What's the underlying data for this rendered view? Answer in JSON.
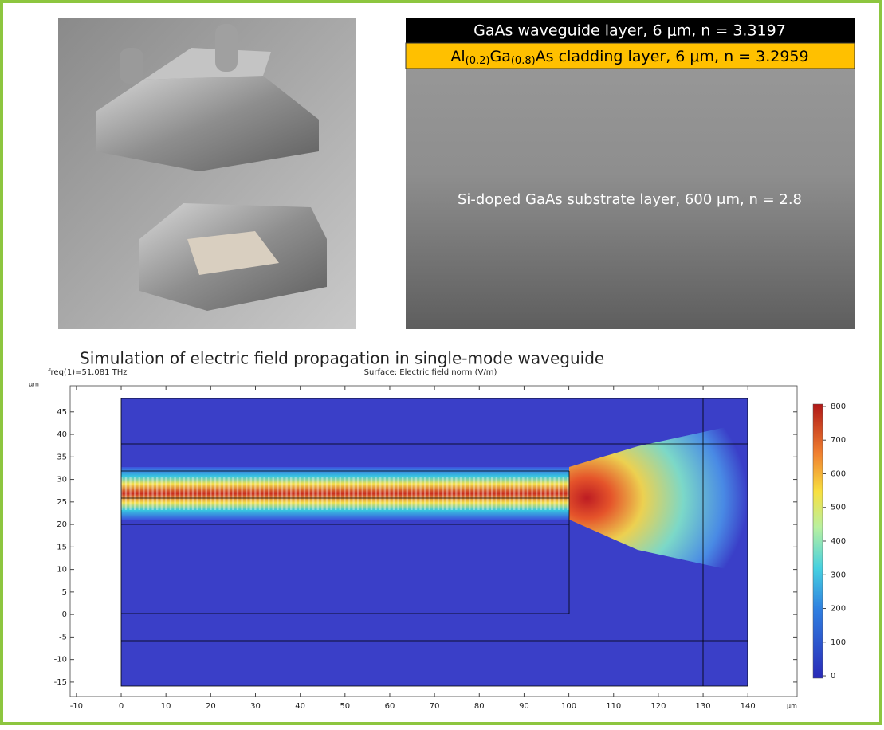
{
  "layers": {
    "waveguide": "GaAs waveguide layer, 6 μm, n = 3.3197",
    "cladding": [
      "Al",
      "(0.2)",
      "Ga",
      "(0.8)",
      "As cladding layer, 6 μm, n = 3.2959"
    ],
    "substrate": "Si-doped GaAs substrate layer, 600 μm, n = 2.8"
  },
  "caption": "Simulation of electric field propagation in single-mode waveguide",
  "chart_data": {
    "type": "heatmap",
    "title": "Surface: Electric field norm (V/m)",
    "subtitle": "freq(1)=51.081 THz",
    "x_unit": "μm",
    "y_unit": "μm",
    "xlim": [
      -11.4,
      151
    ],
    "ylim": [
      -18.2,
      50.8
    ],
    "xticks": [
      -10,
      0,
      10,
      20,
      30,
      40,
      50,
      60,
      70,
      80,
      90,
      100,
      110,
      120,
      130,
      140
    ],
    "yticks": [
      -15,
      -10,
      -5,
      0,
      5,
      10,
      15,
      20,
      25,
      30,
      35,
      40,
      45
    ],
    "colorbar": {
      "lim": [
        -7,
        807
      ],
      "ticks": [
        0,
        100,
        200,
        300,
        400,
        500,
        600,
        700,
        800
      ]
    }
  }
}
